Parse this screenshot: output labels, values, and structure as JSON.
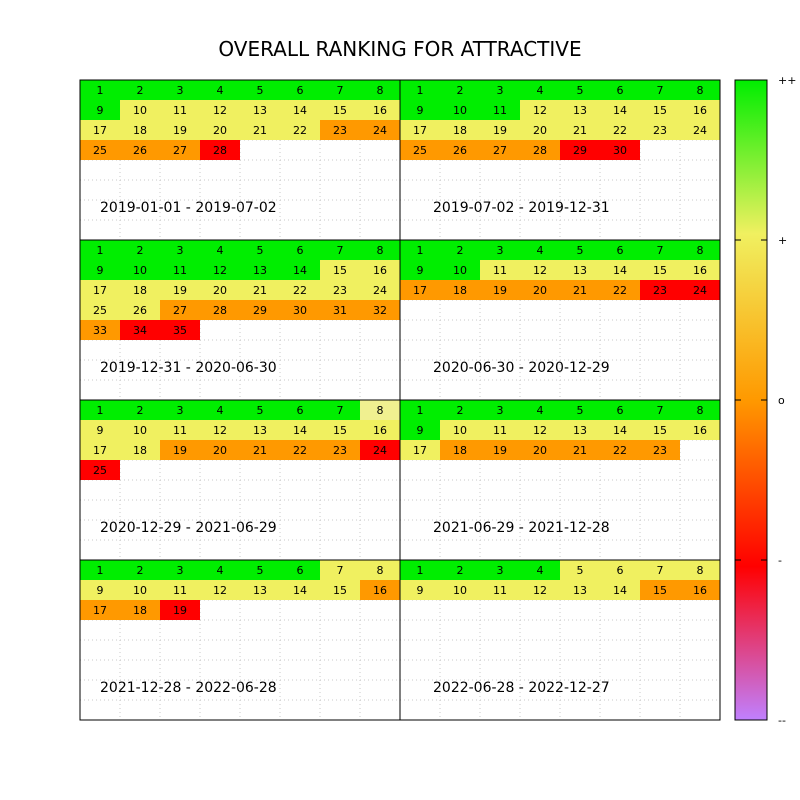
{
  "chart_data": {
    "type": "heatmap",
    "title": "OVERALL RANKING FOR ATTRACTIVE",
    "grid": true,
    "colorbar": {
      "position": "right",
      "tick_labels": [
        "++",
        "+",
        "o",
        "-",
        "--"
      ],
      "colors": [
        "#00ee00",
        "#f0f060",
        "#ff9900",
        "#ff0000",
        "#c080ff"
      ]
    },
    "category_colors": {
      "G": "#00ee00",
      "Y": "#f0f060",
      "L": "#f0f090",
      "O": "#ff9900",
      "R": "#ff0000"
    },
    "panels": [
      {
        "period": "2019-01-01 - 2019-07-02",
        "ranks": "GGGGGGGGGYYYYYYYYYYYYYOOOOOR"
      },
      {
        "period": "2019-07-02 - 2019-12-31",
        "ranks": "GGGGGGGGGGGYYYYYYYYYYYYYOOOORR"
      },
      {
        "period": "2019-12-31 - 2020-06-30",
        "ranks": "GGGGGGGGGGGGGGYYYYYYYYYYYYOOOOOOORR"
      },
      {
        "period": "2020-06-30 - 2020-12-29",
        "ranks": "GGGGGGGGGGYYYYYYOOOOOORR"
      },
      {
        "period": "2020-12-29 - 2021-06-29",
        "ranks": "GGGGGGGLYYYYYYYYYYOOOOOR R"
      },
      {
        "period": "2021-06-29 - 2021-12-28",
        "ranks": "GGGGGGGGGYYYYYYYYOOOOOO"
      },
      {
        "period": "2021-12-28 - 2022-06-28",
        "ranks": "GGGGGGYYYYYYYYYOOOR"
      },
      {
        "period": "2022-06-28 - 2022-12-27",
        "ranks": "GGGGYYYYYYYYYYOO"
      }
    ]
  }
}
